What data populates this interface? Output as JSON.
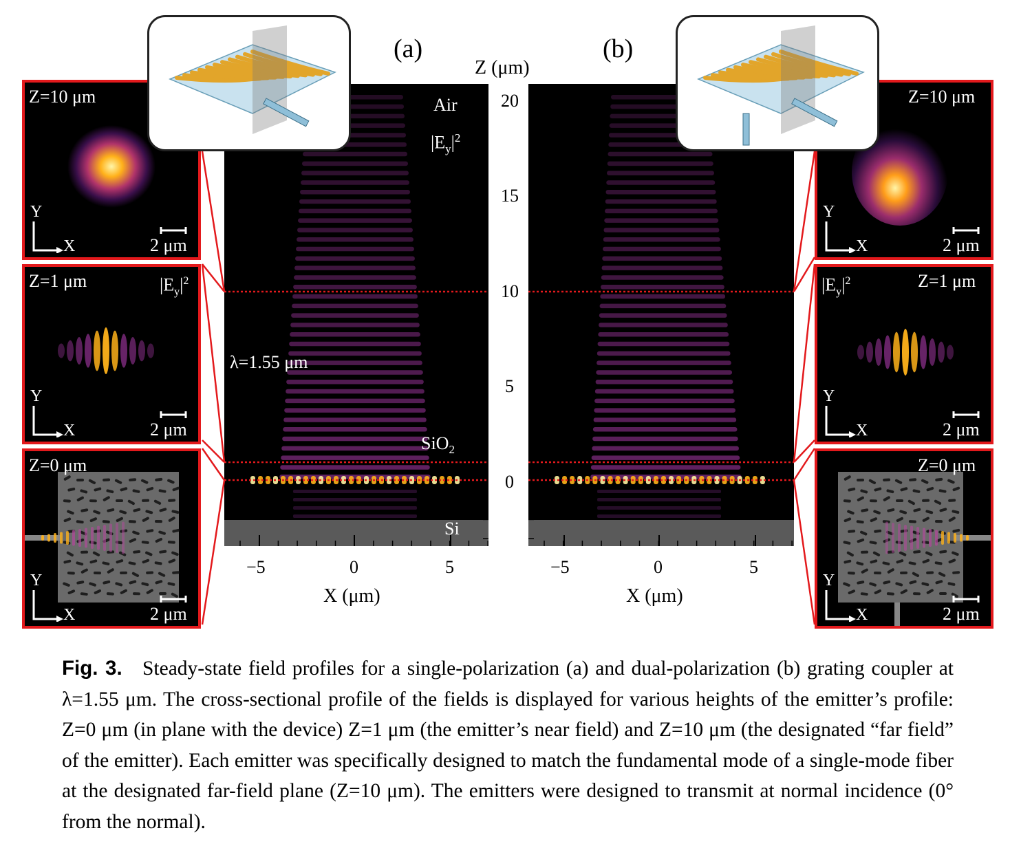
{
  "figure": {
    "panel_a_label": "(a)",
    "panel_b_label": "(b)",
    "z_axis_label": "Z (μm)",
    "x_axis_label": "X (μm)",
    "z_ticks": [
      "20",
      "15",
      "10",
      "5",
      "0"
    ],
    "x_ticks": [
      "−5",
      "0",
      "5"
    ],
    "region_air": "Air",
    "field_label": "|E",
    "field_sub": "y",
    "field_sup": "2",
    "region_sio2": "SiO",
    "sio2_sub": "2",
    "region_si": "Si",
    "wavelength": "λ=1.55 μm"
  },
  "insets_left": [
    {
      "z_label": "Z=10 μm",
      "scale": "2 μm",
      "y": "Y",
      "x": "X",
      "field": ""
    },
    {
      "z_label": "Z=1 μm",
      "scale": "2 μm",
      "y": "Y",
      "x": "X",
      "field": "|E"
    },
    {
      "z_label": "Z=0 μm",
      "scale": "2 μm",
      "y": "Y",
      "x": "X",
      "field": ""
    }
  ],
  "insets_right": [
    {
      "z_label": "Z=10 μm",
      "scale": "2 μm",
      "y": "Y",
      "x": "X",
      "field": ""
    },
    {
      "z_label": "Z=1 μm",
      "scale": "2 μm",
      "y": "Y",
      "x": "X",
      "field": "|E"
    },
    {
      "z_label": "Z=0 μm",
      "scale": "2 μm",
      "y": "Y",
      "x": "X",
      "field": ""
    }
  ],
  "caption": {
    "fig_label": "Fig. 3.",
    "text": "Steady-state field profiles for a single-polarization (a) and dual-polarization (b) grating coupler at λ=1.55 μm. The cross-sectional profile of the fields is displayed for various heights of the emitter’s profile: Z=0 μm (in plane with the device) Z=1 μm (the emitter’s near field) and Z=10 μm (the designated “far field” of the emitter). Each emitter was specifically designed to match the fundamental mode of a single-mode fiber at the designated far-field plane (Z=10 μm). The emitters were designed to transmit at normal incidence (0° from the normal)."
  },
  "colors": {
    "highlight": "#e3191c",
    "field_hot": "#ffd23a",
    "field_mid": "#a33a8c",
    "device_gold": "#e2a52a",
    "device_blue": "#8fbfd8"
  }
}
